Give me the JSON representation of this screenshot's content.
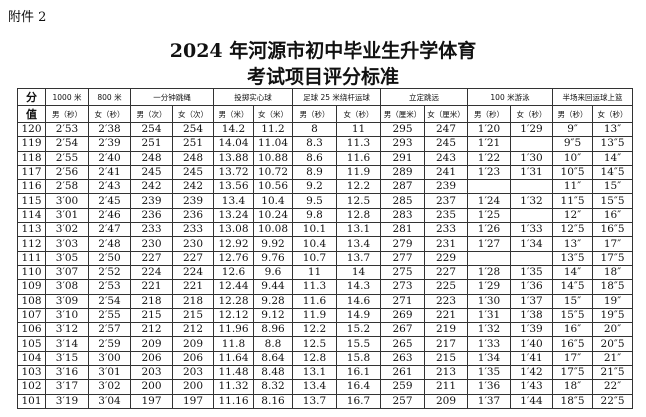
{
  "annex": "附件 2",
  "title_line1": "2024 年河源市初中毕业生升学体育",
  "title_line2": "考试项目评分标准",
  "score_header": [
    "分",
    "值"
  ],
  "groups": [
    "1000 米",
    "800 米",
    "一分钟跳绳",
    "投掷实心球",
    "足球 25 米绕杆运球",
    "立定跳远",
    "100 米游泳",
    "半场来回运球上篮"
  ],
  "subheaders": [
    "男（秒）",
    "女（秒）",
    "男（次）",
    "女（次）",
    "男（米）",
    "女（米）",
    "男（秒）",
    "女（秒）",
    "男（厘米）",
    "女（厘米）",
    "男（秒）",
    "女（秒）",
    "男（秒）",
    "女（秒）"
  ],
  "rows": [
    [
      "120",
      "2′53",
      "2′38",
      "254",
      "254",
      "14.2",
      "11.2",
      "8",
      "11",
      "295",
      "247",
      "1′20",
      "1′29",
      "9″",
      "13″"
    ],
    [
      "119",
      "2′54",
      "2′39",
      "251",
      "251",
      "14.04",
      "11.04",
      "8.3",
      "11.3",
      "293",
      "245",
      "1′21",
      "",
      "9″5",
      "13″5"
    ],
    [
      "118",
      "2′55",
      "2′40",
      "248",
      "248",
      "13.88",
      "10.88",
      "8.6",
      "11.6",
      "291",
      "243",
      "1′22",
      "1′30",
      "10″",
      "14″"
    ],
    [
      "117",
      "2′56",
      "2′41",
      "245",
      "245",
      "13.72",
      "10.72",
      "8.9",
      "11.9",
      "289",
      "241",
      "1′23",
      "1′31",
      "10″5",
      "14″5"
    ],
    [
      "116",
      "2′58",
      "2′43",
      "242",
      "242",
      "13.56",
      "10.56",
      "9.2",
      "12.2",
      "287",
      "239",
      "",
      "",
      "11″",
      "15″"
    ],
    [
      "115",
      "3′00",
      "2′45",
      "239",
      "239",
      "13.4",
      "10.4",
      "9.5",
      "12.5",
      "285",
      "237",
      "1′24",
      "1′32",
      "11″5",
      "15″5"
    ],
    [
      "114",
      "3′01",
      "2′46",
      "236",
      "236",
      "13.24",
      "10.24",
      "9.8",
      "12.8",
      "283",
      "235",
      "1′25",
      "",
      "12″",
      "16″"
    ],
    [
      "113",
      "3′02",
      "2′47",
      "233",
      "233",
      "13.08",
      "10.08",
      "10.1",
      "13.1",
      "281",
      "233",
      "1′26",
      "1′33",
      "12″5",
      "16″5"
    ],
    [
      "112",
      "3′03",
      "2′48",
      "230",
      "230",
      "12.92",
      "9.92",
      "10.4",
      "13.4",
      "279",
      "231",
      "1′27",
      "1′34",
      "13″",
      "17″"
    ],
    [
      "111",
      "3′05",
      "2′50",
      "227",
      "227",
      "12.76",
      "9.76",
      "10.7",
      "13.7",
      "277",
      "229",
      "",
      "",
      "13″5",
      "17″5"
    ],
    [
      "110",
      "3′07",
      "2′52",
      "224",
      "224",
      "12.6",
      "9.6",
      "11",
      "14",
      "275",
      "227",
      "1′28",
      "1′35",
      "14″",
      "18″"
    ],
    [
      "109",
      "3′08",
      "2′53",
      "221",
      "221",
      "12.44",
      "9.44",
      "11.3",
      "14.3",
      "273",
      "225",
      "1′29",
      "1′36",
      "14″5",
      "18″5"
    ],
    [
      "108",
      "3′09",
      "2′54",
      "218",
      "218",
      "12.28",
      "9.28",
      "11.6",
      "14.6",
      "271",
      "223",
      "1′30",
      "1′37",
      "15″",
      "19″"
    ],
    [
      "107",
      "3′10",
      "2′55",
      "215",
      "215",
      "12.12",
      "9.12",
      "11.9",
      "14.9",
      "269",
      "221",
      "1′31",
      "1′38",
      "15″5",
      "19″5"
    ],
    [
      "106",
      "3′12",
      "2′57",
      "212",
      "212",
      "11.96",
      "8.96",
      "12.2",
      "15.2",
      "267",
      "219",
      "1′32",
      "1′39",
      "16″",
      "20″"
    ],
    [
      "105",
      "3′14",
      "2′59",
      "209",
      "209",
      "11.8",
      "8.8",
      "12.5",
      "15.5",
      "265",
      "217",
      "1′33",
      "1′40",
      "16″5",
      "20″5"
    ],
    [
      "104",
      "3′15",
      "3′00",
      "206",
      "206",
      "11.64",
      "8.64",
      "12.8",
      "15.8",
      "263",
      "215",
      "1′34",
      "1′41",
      "17″",
      "21″"
    ],
    [
      "103",
      "3′16",
      "3′01",
      "203",
      "203",
      "11.48",
      "8.48",
      "13.1",
      "16.1",
      "261",
      "213",
      "1′35",
      "1′42",
      "17″5",
      "21″5"
    ],
    [
      "102",
      "3′17",
      "3′02",
      "200",
      "200",
      "11.32",
      "8.32",
      "13.4",
      "16.4",
      "259",
      "211",
      "1′36",
      "1′43",
      "18″",
      "22″"
    ],
    [
      "101",
      "3′19",
      "3′04",
      "197",
      "197",
      "11.16",
      "8.16",
      "13.7",
      "16.7",
      "257",
      "209",
      "1′37",
      "1′44",
      "18″5",
      "22″5"
    ]
  ]
}
